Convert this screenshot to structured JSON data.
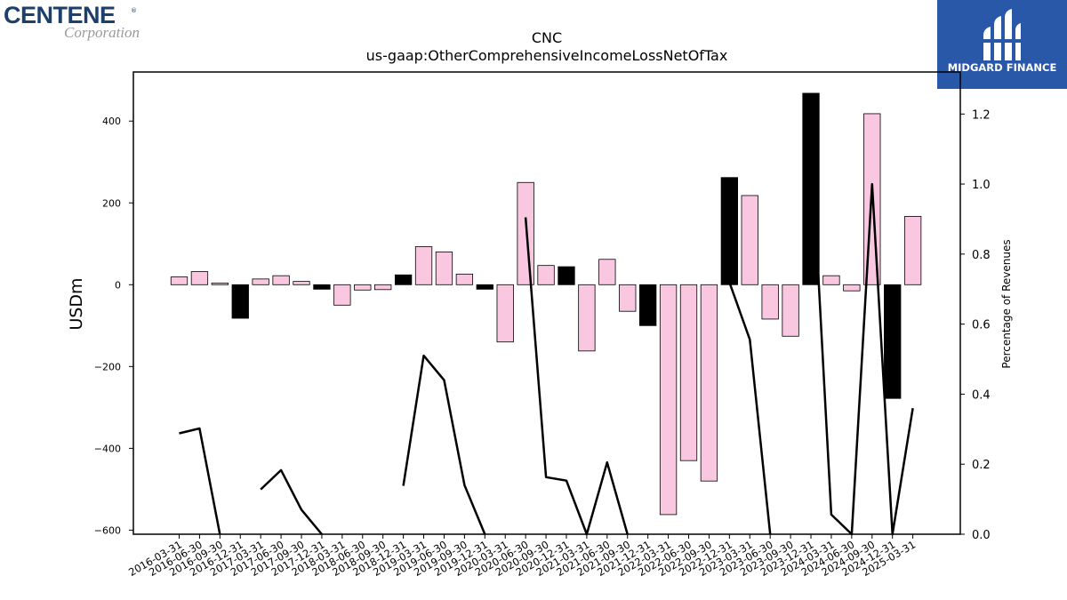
{
  "logos": {
    "left_brand": "CENTENE",
    "left_sub": "Corporation",
    "right_brand": "MIDGARD FINANCE"
  },
  "chart_data": {
    "type": "bar",
    "title": "CNC",
    "subtitle": "us-gaap:OtherComprehensiveIncomeLossNetOfTax",
    "ylabel": "USDm",
    "y2label": "Percentage of Revenues",
    "ylim": [
      -610,
      520
    ],
    "y2lim": [
      0.0,
      1.32
    ],
    "yticks": [
      -600,
      -400,
      -200,
      0,
      200,
      400
    ],
    "y2ticks": [
      0.0,
      0.2,
      0.4,
      0.6,
      0.8,
      1.0,
      1.2
    ],
    "grid": false,
    "colors": {
      "positive_change": "#f9c8e0",
      "negative_change": "#000000",
      "line": "#000000"
    },
    "categories": [
      "2016-03-31",
      "2016-06-30",
      "2016-09-30",
      "2016-12-31",
      "2017-03-31",
      "2017-06-30",
      "2017-09-30",
      "2017-12-31",
      "2018-03-31",
      "2018-06-30",
      "2018-09-30",
      "2018-12-31",
      "2019-03-31",
      "2019-06-30",
      "2019-09-30",
      "2019-12-31",
      "2020-03-31",
      "2020-06-30",
      "2020-09-30",
      "2020-12-31",
      "2021-03-31",
      "2021-06-30",
      "2021-09-30",
      "2021-12-31",
      "2022-03-31",
      "2022-06-30",
      "2022-09-30",
      "2022-12-31",
      "2023-03-31",
      "2023-06-30",
      "2023-09-30",
      "2023-12-31",
      "2024-03-31",
      "2024-06-30",
      "2024-09-30",
      "2024-12-31",
      "2025-03-31"
    ],
    "series": [
      {
        "type": "bar",
        "values": [
          19,
          32,
          4,
          -82,
          14,
          22,
          8,
          -11,
          -50,
          -13,
          -12,
          24,
          93,
          80,
          26,
          -11,
          -140,
          250,
          47,
          44,
          -162,
          62,
          -65,
          -100,
          -562,
          -430,
          -480,
          262,
          218,
          -84,
          -126,
          468,
          22,
          -15,
          418,
          -278,
          167
        ],
        "fill": [
          "pink",
          "pink",
          "pink",
          "black",
          "pink",
          "pink",
          "pink",
          "black",
          "pink",
          "pink",
          "pink",
          "black",
          "pink",
          "pink",
          "pink",
          "black",
          "pink",
          "pink",
          "pink",
          "black",
          "pink",
          "pink",
          "pink",
          "black",
          "pink",
          "pink",
          "pink",
          "black",
          "pink",
          "pink",
          "pink",
          "black",
          "pink",
          "pink",
          "pink",
          "black",
          "pink"
        ]
      },
      {
        "type": "line",
        "values": [
          0.288,
          0.302,
          0.0,
          null,
          0.128,
          0.183,
          0.07,
          0.0,
          null,
          null,
          null,
          0.138,
          0.51,
          0.44,
          0.14,
          0.0,
          null,
          0.905,
          0.163,
          0.153,
          0.0,
          0.205,
          0.0,
          null,
          null,
          null,
          null,
          0.72,
          0.556,
          0.0,
          null,
          1.13,
          0.056,
          0.0,
          1.0,
          0.0,
          0.36
        ]
      }
    ]
  }
}
